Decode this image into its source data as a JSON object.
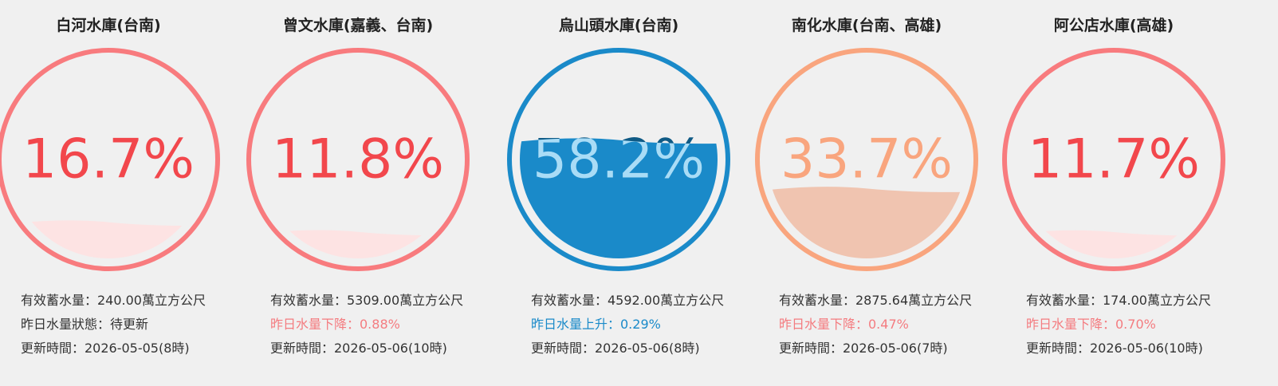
{
  "reservoirs": [
    {
      "name": "白河水庫(台南)",
      "percent": 16.7,
      "percent_label": "16.7%",
      "storage": "有效蓄水量：240.00萬立方公尺",
      "status": "昨日水量狀態：待更新",
      "updated": "更新時間：2026-05-05(8時)",
      "color": "#f87b7e",
      "text_color": "#f2474c",
      "fill_color": "#fde3e3",
      "inner_text_color": "#f2474c",
      "status_color": "#333333"
    },
    {
      "name": "曾文水庫(嘉義、台南)",
      "percent": 11.8,
      "percent_label": "11.8%",
      "storage": "有效蓄水量：5309.00萬立方公尺",
      "status": "昨日水量下降：0.88%",
      "updated": "更新時間：2026-05-06(10時)",
      "color": "#f87b7e",
      "text_color": "#f2474c",
      "fill_color": "#fde3e3",
      "inner_text_color": "#f2474c",
      "status_color": "#f47c80"
    },
    {
      "name": "烏山頭水庫(台南)",
      "percent": 58.2,
      "percent_label": "58.2%",
      "storage": "有效蓄水量：4592.00萬立方公尺",
      "status": "昨日水量上升：0.29%",
      "updated": "更新時間：2026-05-06(8時)",
      "color": "#1a8ac9",
      "text_color": "#0f5a85",
      "fill_color": "#1a8ac9",
      "inner_text_color": "#a9dcf6",
      "status_color": "#1a8ac9"
    },
    {
      "name": "南化水庫(台南、高雄)",
      "percent": 33.7,
      "percent_label": "33.7%",
      "storage": "有效蓄水量：2875.64萬立方公尺",
      "status": "昨日水量下降：0.47%",
      "updated": "更新時間：2026-05-06(7時)",
      "color": "#f9a57e",
      "text_color": "#f9a57e",
      "fill_color": "#f0c4b0",
      "inner_text_color": "#f9a57e",
      "status_color": "#f47c80"
    },
    {
      "name": "阿公店水庫(高雄)",
      "percent": 11.7,
      "percent_label": "11.7%",
      "storage": "有效蓄水量：174.00萬立方公尺",
      "status": "昨日水量下降：0.70%",
      "updated": "更新時間：2026-05-06(10時)",
      "color": "#f87b7e",
      "text_color": "#f2474c",
      "fill_color": "#fde3e3",
      "inner_text_color": "#f2474c",
      "status_color": "#f47c80"
    }
  ]
}
